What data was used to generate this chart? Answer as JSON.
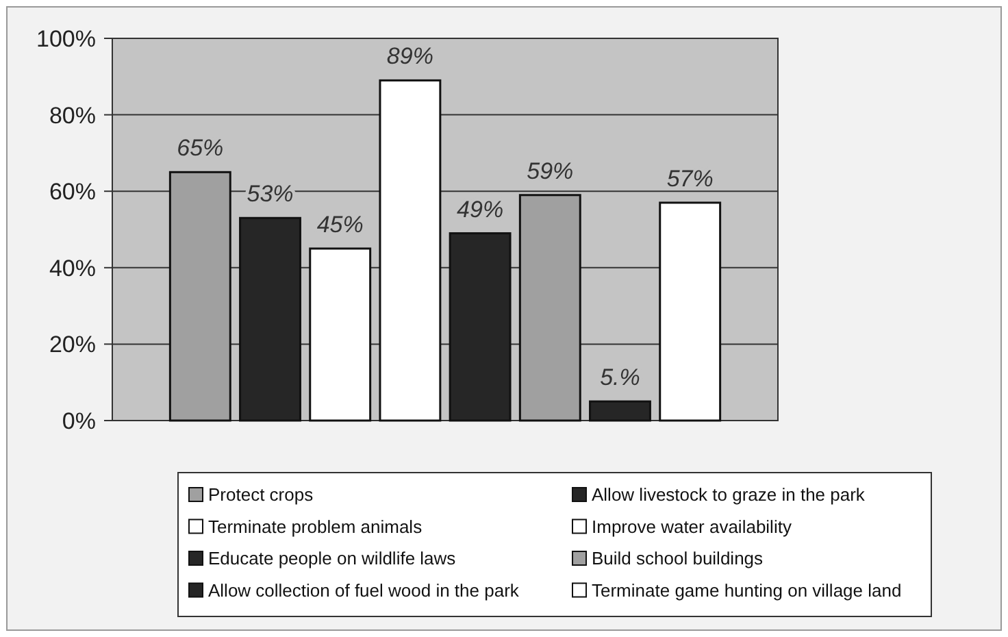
{
  "chart_data": {
    "type": "bar",
    "categories": [
      null
    ],
    "ylim": [
      0,
      100
    ],
    "yticks": [
      {
        "value": 0,
        "label": "0%"
      },
      {
        "value": 20,
        "label": "20%"
      },
      {
        "value": 40,
        "label": "40%"
      },
      {
        "value": 60,
        "label": "60%"
      },
      {
        "value": 80,
        "label": "80%"
      },
      {
        "value": 100,
        "label": "100%"
      }
    ],
    "grid": "y",
    "legend": "bottom",
    "series": [
      {
        "name": "Protect crops",
        "color": "#a0a0a0",
        "values": [
          65
        ],
        "value_labels": [
          "65%"
        ]
      },
      {
        "name": "Allow livestock to graze in the park",
        "color": "#262626",
        "values": [
          53
        ],
        "value_labels": [
          "53%"
        ]
      },
      {
        "name": "Terminate problem animals",
        "color": "#ffffff",
        "values": [
          45
        ],
        "value_labels": [
          "45%"
        ]
      },
      {
        "name": "Improve water availability",
        "color": "#ffffff",
        "values": [
          89
        ],
        "value_labels": [
          "89%"
        ]
      },
      {
        "name": "Educate people on wildlife laws",
        "color": "#262626",
        "values": [
          49
        ],
        "value_labels": [
          "49%"
        ]
      },
      {
        "name": "Build school buildings",
        "color": "#a0a0a0",
        "values": [
          59
        ],
        "value_labels": [
          "59%"
        ]
      },
      {
        "name": "Allow collection of fuel wood in the park",
        "color": "#262626",
        "values": [
          5
        ],
        "value_labels": [
          "5.%"
        ]
      },
      {
        "name": "Terminate game hunting on village land",
        "color": "#ffffff",
        "values": [
          57
        ],
        "value_labels": [
          "57%"
        ]
      }
    ]
  }
}
